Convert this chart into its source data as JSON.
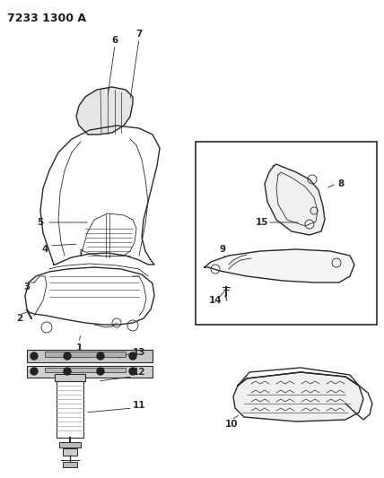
{
  "title": "7233 1300 A",
  "background_color": "#ffffff",
  "line_color": "#2a2a2a",
  "label_color": "#1a1a1a",
  "title_fontsize": 9,
  "label_fontsize": 7.5,
  "figsize": [
    4.28,
    5.33
  ],
  "dpi": 100
}
